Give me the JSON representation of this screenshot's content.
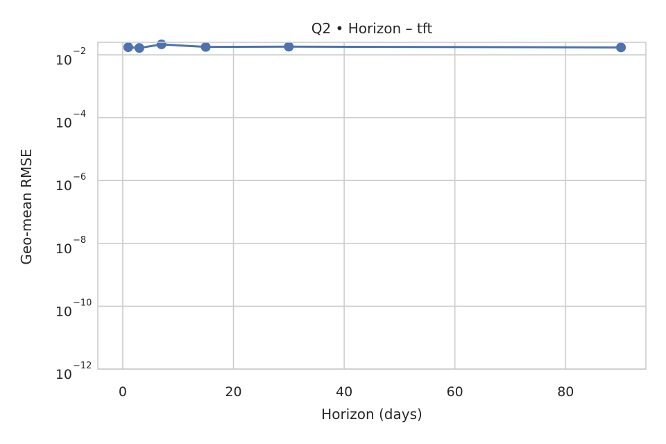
{
  "chart_data": {
    "type": "line",
    "title": "Q2 • Horizon – tft",
    "xlabel": "Horizon (days)",
    "ylabel": "Geo-mean RMSE",
    "x_scale": "linear",
    "y_scale": "log",
    "xlim": [
      -4.5,
      94.5
    ],
    "ylim": [
      1e-12,
      0.025
    ],
    "x_ticks": [
      0,
      20,
      40,
      60,
      80
    ],
    "y_ticks": [
      {
        "base": "10",
        "exp": "−12",
        "value": 1e-12
      },
      {
        "base": "10",
        "exp": "−10",
        "value": 1e-10
      },
      {
        "base": "10",
        "exp": "−8",
        "value": 1e-08
      },
      {
        "base": "10",
        "exp": "−6",
        "value": 1e-06
      },
      {
        "base": "10",
        "exp": "−4",
        "value": 0.0001
      },
      {
        "base": "10",
        "exp": "−2",
        "value": 0.01
      }
    ],
    "grid": true,
    "legend": "none",
    "series": [
      {
        "color": "#4c72b0",
        "x": [
          1,
          3,
          7,
          15,
          30,
          90
        ],
        "y": [
          0.0175,
          0.0165,
          0.0215,
          0.0178,
          0.0182,
          0.0172
        ]
      }
    ]
  }
}
